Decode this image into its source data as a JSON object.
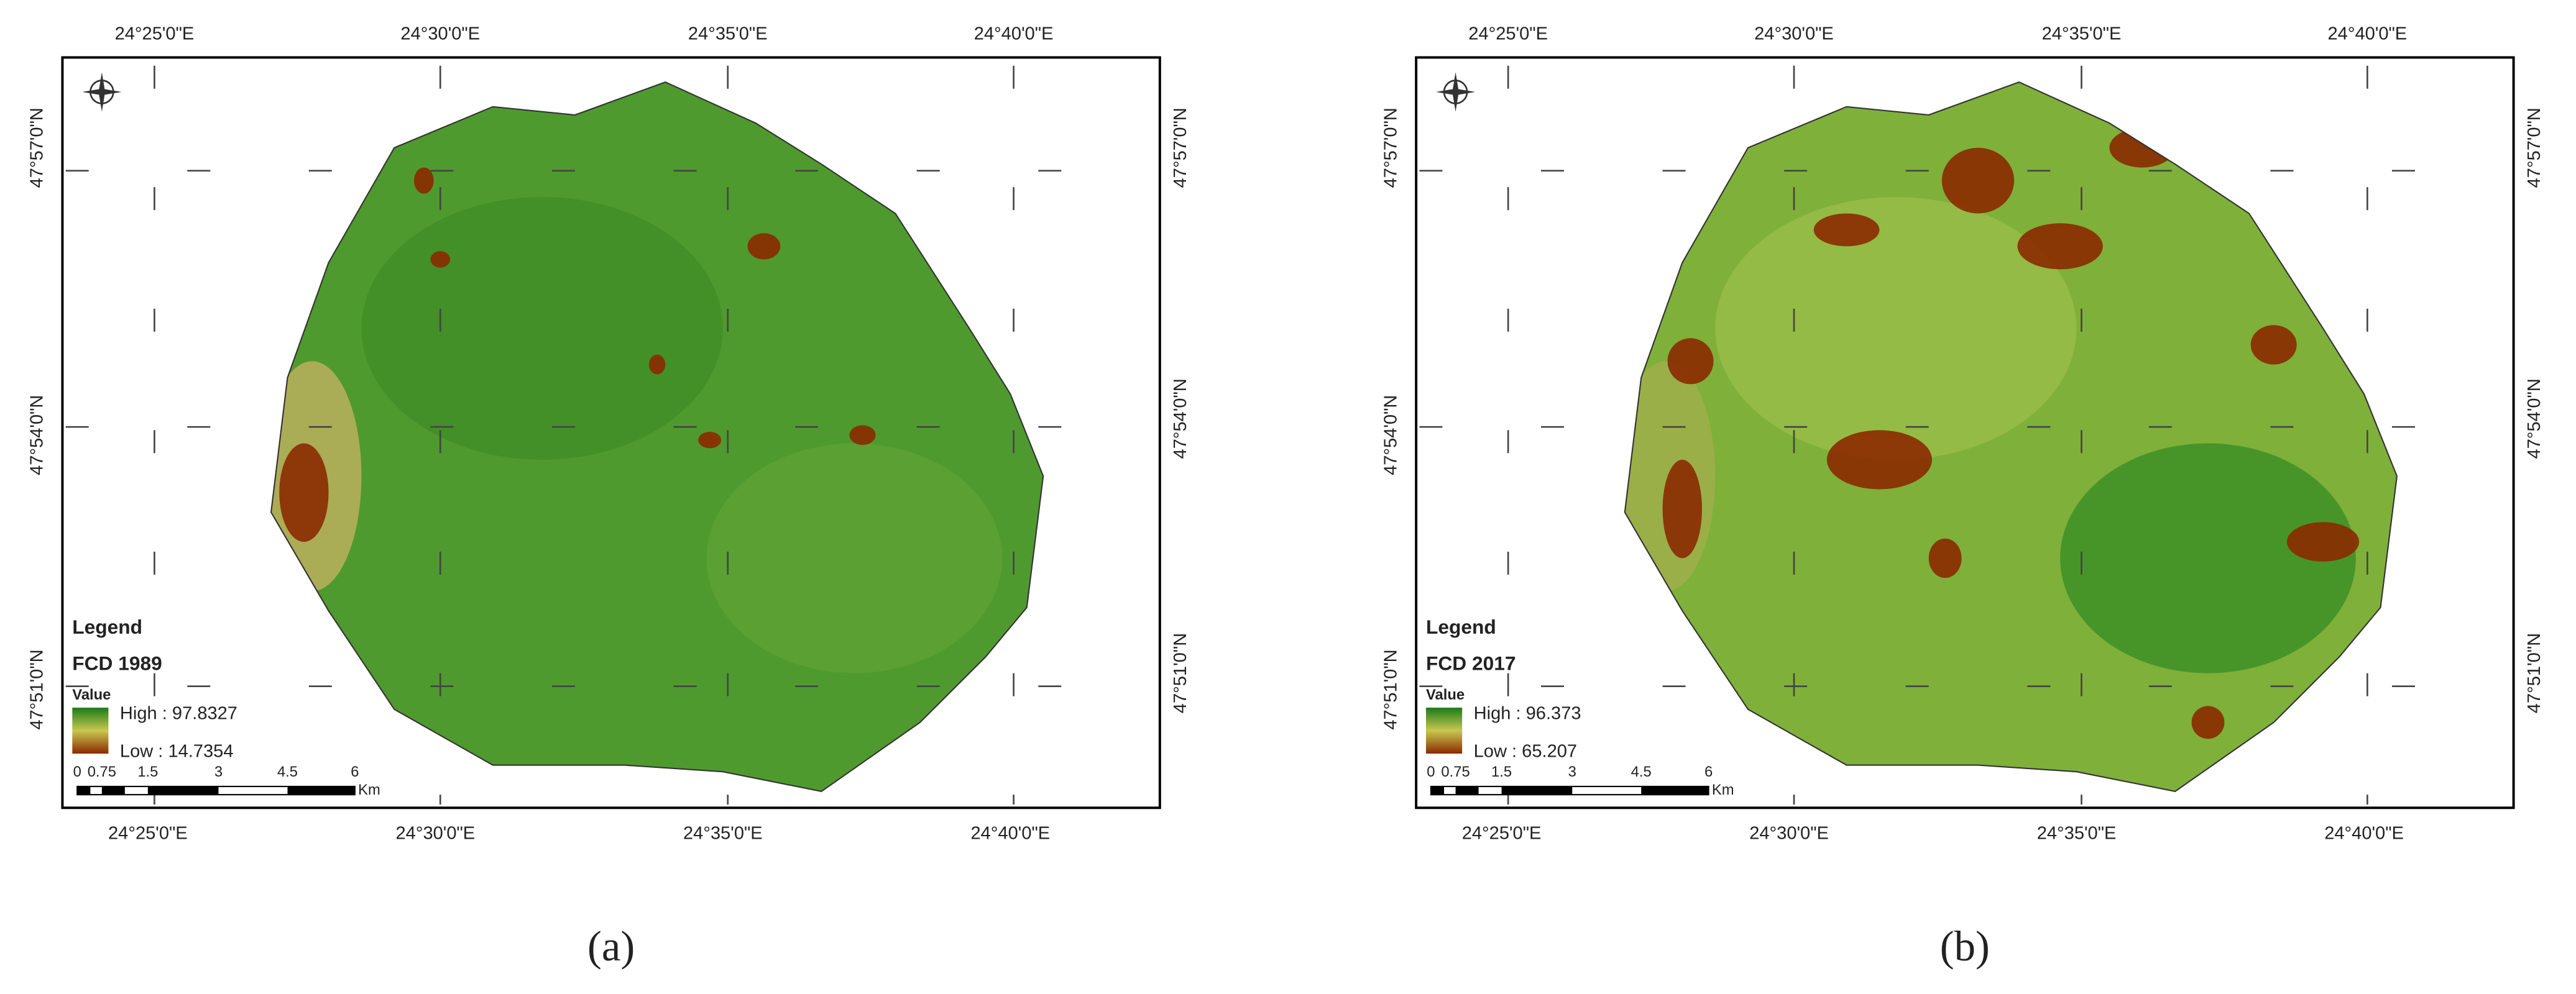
{
  "panels": [
    {
      "top_labels": [
        "24°25'0\"E",
        "24°30'0\"E",
        "24°35'0\"E",
        "24°40'0\"E"
      ],
      "bottom_labels": [
        "24°25'0\"E",
        "24°30'0\"E",
        "24°35'0\"E",
        "24°40'0\"E"
      ],
      "left_labels": [
        "47°57'0\"N",
        "47°54'0\"N",
        "47°51'0\"N"
      ],
      "right_labels": [
        "47°57'0\"N",
        "47°54'0\"N",
        "47°51'0\"N"
      ],
      "legend": {
        "title": "Legend",
        "layer": "FCD 1989",
        "value": "Value",
        "high": "High : 97.8327",
        "low": "Low : 14.7354"
      },
      "scale": [
        "0",
        "0.75",
        "1.5",
        "3",
        "4.5",
        "6"
      ],
      "scale_unit": "Km",
      "caption": "(a)"
    },
    {
      "top_labels": [
        "24°25'0\"E",
        "24°30'0\"E",
        "24°35'0\"E",
        "24°40'0\"E"
      ],
      "bottom_labels": [
        "24°25'0\"E",
        "24°30'0\"E",
        "24°35'0\"E",
        "24°40'0\"E"
      ],
      "left_labels": [
        "47°57'0\"N",
        "47°54'0\"N",
        "47°51'0\"N"
      ],
      "right_labels": [
        "47°57'0\"N",
        "47°54'0\"N",
        "47°51'0\"N"
      ],
      "legend": {
        "title": "Legend",
        "layer": "FCD 2017",
        "value": "Value",
        "high": "High : 96.373",
        "low": "Low : 65.207"
      },
      "scale": [
        "0",
        "0.75",
        "1.5",
        "3",
        "4.5",
        "6"
      ],
      "scale_unit": "Km",
      "caption": "(b)"
    }
  ]
}
